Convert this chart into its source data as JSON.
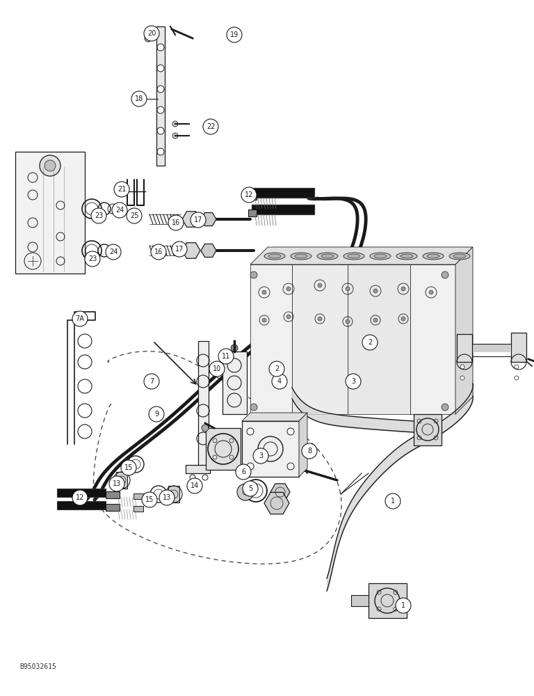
{
  "background_color": "#ffffff",
  "ref_code": "B95032615",
  "figsize": [
    7.68,
    10.0
  ],
  "dpi": 100,
  "line_color": "#1a1a1a",
  "labels": [
    [
      "20",
      218,
      48
    ],
    [
      "19",
      337,
      50
    ],
    [
      "18",
      200,
      142
    ],
    [
      "22",
      303,
      182
    ],
    [
      "21",
      175,
      272
    ],
    [
      "25",
      193,
      310
    ],
    [
      "24",
      172,
      302
    ],
    [
      "23",
      142,
      310
    ],
    [
      "24",
      163,
      362
    ],
    [
      "23",
      133,
      372
    ],
    [
      "16",
      253,
      320
    ],
    [
      "17",
      285,
      316
    ],
    [
      "16",
      228,
      362
    ],
    [
      "17",
      258,
      358
    ],
    [
      "12",
      358,
      280
    ],
    [
      "7A",
      115,
      458
    ],
    [
      "7",
      218,
      548
    ],
    [
      "11",
      325,
      512
    ],
    [
      "10",
      312,
      530
    ],
    [
      "9",
      225,
      595
    ],
    [
      "2",
      532,
      492
    ],
    [
      "3",
      508,
      548
    ],
    [
      "4",
      402,
      548
    ],
    [
      "3",
      375,
      655
    ],
    [
      "2",
      398,
      530
    ],
    [
      "5",
      360,
      702
    ],
    [
      "6",
      350,
      678
    ],
    [
      "8",
      445,
      648
    ],
    [
      "13",
      168,
      695
    ],
    [
      "13",
      240,
      715
    ],
    [
      "14",
      280,
      698
    ],
    [
      "15",
      185,
      672
    ],
    [
      "15",
      215,
      718
    ],
    [
      "12",
      115,
      715
    ],
    [
      "1",
      565,
      720
    ],
    [
      "1",
      580,
      870
    ]
  ]
}
